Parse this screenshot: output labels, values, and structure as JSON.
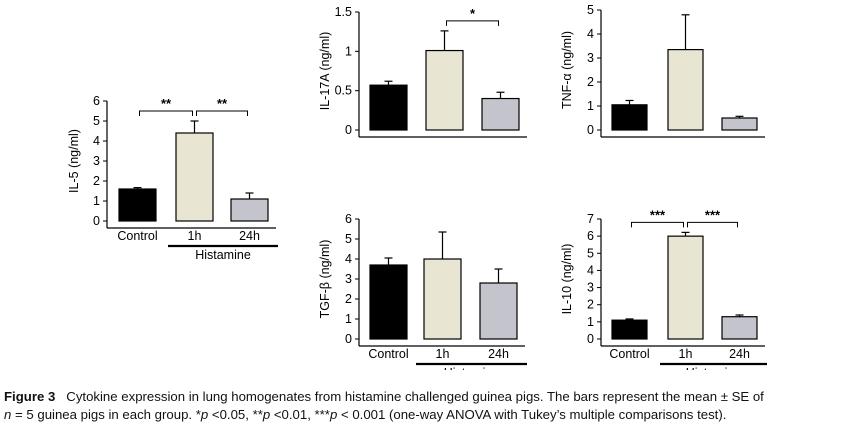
{
  "chart_data": [
    {
      "id": "il5",
      "type": "bar",
      "ylabel": "IL-5 (ng/ml)",
      "ylim": [
        0,
        6
      ],
      "yticks": [
        "0",
        "1",
        "2",
        "3",
        "4",
        "5",
        "6"
      ],
      "categories": [
        "Control",
        "1h",
        "24h"
      ],
      "values": [
        1.6,
        4.4,
        1.1
      ],
      "errors": [
        0.07,
        0.6,
        0.3
      ],
      "colors": [
        "#000000",
        "#e8e6d2",
        "#c4c4cc"
      ],
      "group_label": "Histamine",
      "brackets": [
        {
          "from": 0,
          "to": 1,
          "label": "**"
        },
        {
          "from": 1,
          "to": 2,
          "label": "**"
        }
      ]
    },
    {
      "id": "il17a",
      "type": "bar",
      "ylabel": "IL-17A (ng/ml)",
      "ylim": [
        0,
        1.5
      ],
      "yticks": [
        "0",
        "0.5",
        "1",
        "1.5"
      ],
      "categories": [
        "",
        "",
        ""
      ],
      "values": [
        0.57,
        1.01,
        0.4
      ],
      "errors": [
        0.05,
        0.25,
        0.08
      ],
      "colors": [
        "#000000",
        "#e8e6d2",
        "#c4c4cc"
      ],
      "group_label": "",
      "brackets": [
        {
          "from": 1,
          "to": 2,
          "label": "*"
        }
      ]
    },
    {
      "id": "tnfa",
      "type": "bar",
      "ylabel": "TNF-α (ng/ml)",
      "ylim": [
        0,
        5
      ],
      "yticks": [
        "0",
        "1",
        "2",
        "3",
        "4",
        "5"
      ],
      "categories": [
        "",
        "",
        ""
      ],
      "values": [
        1.05,
        3.35,
        0.5
      ],
      "errors": [
        0.18,
        1.45,
        0.07
      ],
      "colors": [
        "#000000",
        "#e8e6d2",
        "#c4c4cc"
      ],
      "group_label": "",
      "brackets": []
    },
    {
      "id": "tgfb",
      "type": "bar",
      "ylabel": "TGF-β (ng/ml)",
      "ylim": [
        0,
        6
      ],
      "yticks": [
        "0",
        "1",
        "2",
        "3",
        "4",
        "5",
        "6"
      ],
      "categories": [
        "Control",
        "1h",
        "24h"
      ],
      "values": [
        3.7,
        4.0,
        2.8
      ],
      "errors": [
        0.35,
        1.35,
        0.7
      ],
      "colors": [
        "#000000",
        "#e8e6d2",
        "#c4c4cc"
      ],
      "group_label": "Histamine",
      "brackets": []
    },
    {
      "id": "il10",
      "type": "bar",
      "ylabel": "IL-10 (ng/ml)",
      "ylim": [
        0,
        7
      ],
      "yticks": [
        "0",
        "1",
        "2",
        "3",
        "4",
        "5",
        "6",
        "7"
      ],
      "categories": [
        "Control",
        "1h",
        "24h"
      ],
      "values": [
        1.1,
        6.0,
        1.3
      ],
      "errors": [
        0.07,
        0.22,
        0.1
      ],
      "colors": [
        "#000000",
        "#e8e6d2",
        "#c4c4cc"
      ],
      "group_label": "Histamine",
      "brackets": [
        {
          "from": 0,
          "to": 1,
          "label": "***"
        },
        {
          "from": 1,
          "to": 2,
          "label": "***"
        }
      ]
    }
  ],
  "caption": {
    "label": "Figure 3",
    "line1": "Cytokine expression in lung homogenates from histamine challenged guinea pigs. The bars represent the mean ± SE of",
    "line2_n": "n",
    "line2_a": " = 5 guinea pigs in each group. *",
    "p1": "p",
    "line2_b": " <0.05, **",
    "p2": "p",
    "line2_c": " <0.01, ***",
    "p3": "p",
    "line2_d": " < 0.001 (one-way ANOVA with Tukey’s multiple comparisons test)."
  }
}
